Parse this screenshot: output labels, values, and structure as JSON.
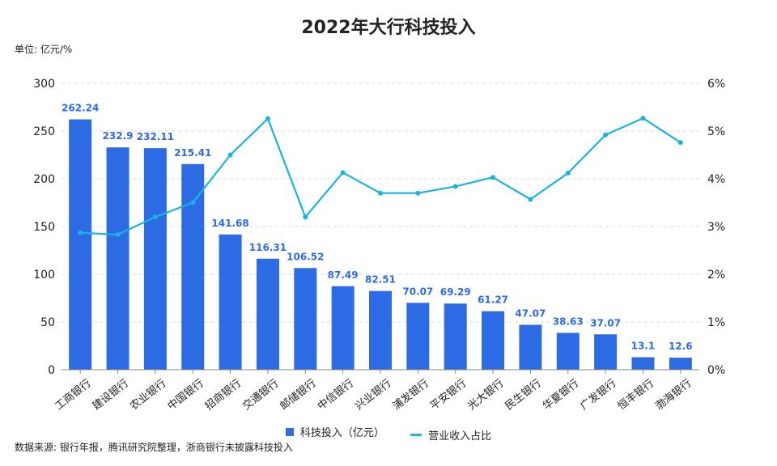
{
  "title": "2022年大行科技投入",
  "unit_label": "单位: 亿元/%",
  "source": "数据来源: 银行年报，腾讯研究院整理，浙商银行未披露科技投入",
  "colors": {
    "bar": "#2d6be4",
    "bar_label": "#2d6be4",
    "line": "#1ab3e0",
    "grid": "#d9d9d9",
    "axis": "#888888"
  },
  "chart_data": {
    "type": "bar",
    "title": "2022年大行科技投入",
    "categories": [
      "工商银行",
      "建设银行",
      "农业银行",
      "中国银行",
      "招商银行",
      "交通银行",
      "邮储银行",
      "中信银行",
      "兴业银行",
      "浦发银行",
      "平安银行",
      "光大银行",
      "民生银行",
      "华夏银行",
      "广发银行",
      "恒丰银行",
      "渤海银行"
    ],
    "series": [
      {
        "name": "科技投入（亿元）",
        "type": "bar",
        "axis": "left",
        "values": [
          262.24,
          232.9,
          232.11,
          215.41,
          141.68,
          116.31,
          106.52,
          87.49,
          82.51,
          70.07,
          69.29,
          61.27,
          47.07,
          38.63,
          37.07,
          13.1,
          12.6
        ],
        "labels": [
          "262.24",
          "232.9",
          "232.11",
          "215.41",
          "141.68",
          "116.31",
          "106.52",
          "87.49",
          "82.51",
          "70.07",
          "69.29",
          "61.27",
          "47.07",
          "38.63",
          "37.07",
          "13.1",
          "12.6"
        ]
      },
      {
        "name": "营业收入占比",
        "type": "line",
        "axis": "right",
        "values": [
          2.87,
          2.83,
          3.2,
          3.5,
          4.5,
          5.26,
          3.2,
          4.13,
          3.7,
          3.7,
          3.84,
          4.03,
          3.57,
          4.12,
          4.92,
          5.27,
          4.76
        ]
      }
    ],
    "ylim_left": [
      0,
      300
    ],
    "yticks_left": [
      "0",
      "50",
      "100",
      "150",
      "200",
      "250",
      "300"
    ],
    "ylim_right": [
      0,
      6
    ],
    "yticks_right": [
      "0%",
      "1%",
      "2%",
      "3%",
      "4%",
      "5%",
      "6%"
    ],
    "legend_position": "bottom",
    "grid": true
  }
}
